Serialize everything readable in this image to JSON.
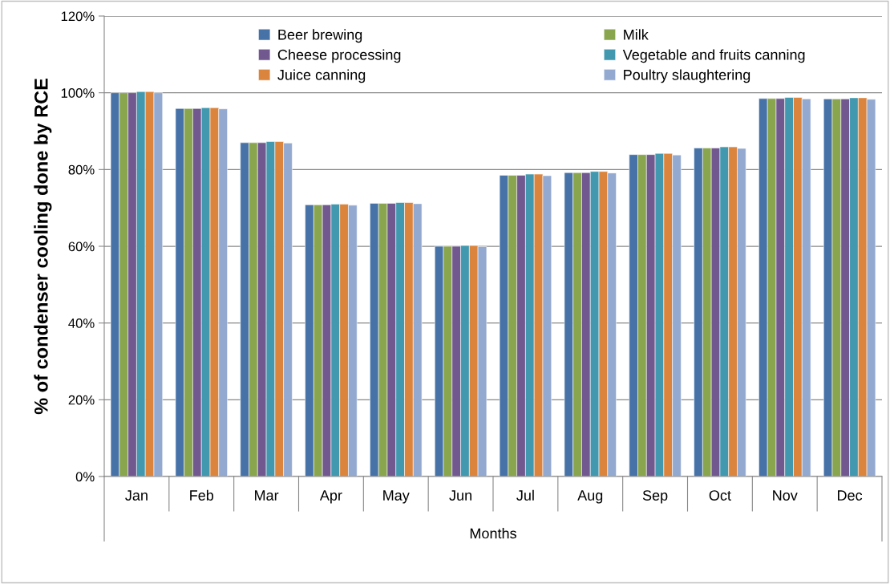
{
  "chart_data": {
    "type": "bar",
    "ylabel": "% of condenser cooling done by RCE",
    "xlabel": "Months",
    "categories": [
      "Jan",
      "Feb",
      "Mar",
      "Apr",
      "May",
      "Jun",
      "Jul",
      "Aug",
      "Sep",
      "Oct",
      "Nov",
      "Dec"
    ],
    "series": [
      {
        "name": "Beer brewing",
        "color": "#4672a8",
        "values": [
          100,
          95.9,
          87,
          70.8,
          71.2,
          60,
          78.5,
          79.2,
          83.9,
          85.6,
          98.5,
          98.4
        ]
      },
      {
        "name": "Milk",
        "color": "#89a54e",
        "values": [
          100,
          95.9,
          87,
          70.8,
          71.2,
          60,
          78.5,
          79.2,
          83.9,
          85.6,
          98.5,
          98.4
        ]
      },
      {
        "name": "Cheese processing",
        "color": "#71588f",
        "values": [
          100,
          95.9,
          87,
          70.8,
          71.2,
          60,
          78.5,
          79.2,
          83.9,
          85.6,
          98.5,
          98.4
        ]
      },
      {
        "name": "Vegetable and fruits canning",
        "color": "#4198af",
        "values": [
          100.3,
          96.1,
          87.3,
          71,
          71.4,
          60.2,
          78.8,
          79.5,
          84.2,
          85.9,
          98.8,
          98.7
        ]
      },
      {
        "name": "Juice canning",
        "color": "#db843d",
        "values": [
          100.3,
          96.1,
          87.3,
          71,
          71.4,
          60.2,
          78.8,
          79.5,
          84.2,
          85.9,
          98.8,
          98.7
        ]
      },
      {
        "name": "Poultry slaughtering",
        "color": "#93a9cf",
        "values": [
          100,
          95.8,
          86.9,
          70.7,
          71.1,
          59.9,
          78.4,
          79.1,
          83.8,
          85.5,
          98.4,
          98.3
        ]
      }
    ],
    "ylim": [
      0,
      120
    ],
    "yticks": [
      {
        "value": 0,
        "label": "0%"
      },
      {
        "value": 20,
        "label": "20%"
      },
      {
        "value": 40,
        "label": "40%"
      },
      {
        "value": 60,
        "label": "60%"
      },
      {
        "value": 80,
        "label": "80%"
      },
      {
        "value": 100,
        "label": "100%"
      },
      {
        "value": 120,
        "label": "120%"
      }
    ],
    "grid": "y",
    "legend": "top"
  }
}
